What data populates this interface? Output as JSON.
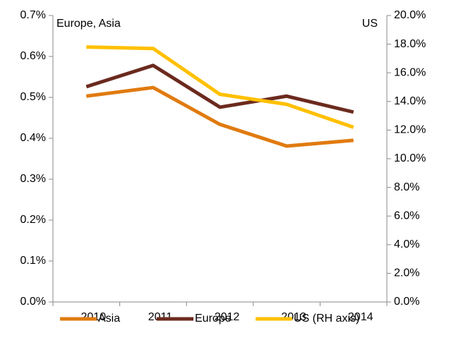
{
  "chart_data": {
    "type": "line",
    "categories": [
      "2010",
      "2011",
      "2012",
      "2013",
      "2014"
    ],
    "y_label": "Europe, Asia",
    "y2_label": "US",
    "series": [
      {
        "name": "Asia",
        "color": "#e07b10",
        "values": [
          0.503,
          0.524,
          0.434,
          0.381,
          0.395
        ]
      },
      {
        "name": "Europe",
        "color": "#6b2a1e",
        "values": [
          0.526,
          0.578,
          0.476,
          0.503,
          0.464
        ]
      },
      {
        "name": "US (RH axis)",
        "color": "#ffc000",
        "axis": "y2",
        "values": [
          17.8,
          17.7,
          14.5,
          13.8,
          12.2
        ]
      }
    ],
    "ylim": [
      0,
      0.7
    ],
    "yticks": [
      {
        "value": 0,
        "label": "0.0%"
      },
      {
        "value": 0.1,
        "label": "0.1%"
      },
      {
        "value": 0.2,
        "label": "0.2%"
      },
      {
        "value": 0.3,
        "label": "0.3%"
      },
      {
        "value": 0.4,
        "label": "0.4%"
      },
      {
        "value": 0.5,
        "label": "0.5%"
      },
      {
        "value": 0.6,
        "label": "0.6%"
      },
      {
        "value": 0.7,
        "label": "0.7%"
      }
    ],
    "y2lim": [
      0,
      20
    ],
    "y2ticks": [
      {
        "value": 0,
        "label": "0.0%"
      },
      {
        "value": 2,
        "label": "2.0%"
      },
      {
        "value": 4,
        "label": "4.0%"
      },
      {
        "value": 6,
        "label": "6.0%"
      },
      {
        "value": 8,
        "label": "8.0%"
      },
      {
        "value": 10,
        "label": "10.0%"
      },
      {
        "value": 12,
        "label": "12.0%"
      },
      {
        "value": 14,
        "label": "14.0%"
      },
      {
        "value": 16,
        "label": "16.0%"
      },
      {
        "value": 18,
        "label": "18.0%"
      },
      {
        "value": 20,
        "label": "20.0%"
      }
    ],
    "grid": false,
    "legend": "bottom"
  }
}
